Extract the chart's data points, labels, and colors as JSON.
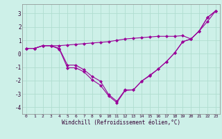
{
  "xlabel": "Windchill (Refroidissement éolien,°C)",
  "background_color": "#cdf0e8",
  "line_color": "#990099",
  "xlim": [
    -0.5,
    23.5
  ],
  "ylim": [
    -4.5,
    3.7
  ],
  "yticks": [
    -4,
    -3,
    -2,
    -1,
    0,
    1,
    2,
    3
  ],
  "xticks": [
    0,
    1,
    2,
    3,
    4,
    5,
    6,
    7,
    8,
    9,
    10,
    11,
    12,
    13,
    14,
    15,
    16,
    17,
    18,
    19,
    20,
    21,
    22,
    23
  ],
  "grid_color": "#b0ddd0",
  "series1_x": [
    0,
    1,
    2,
    3,
    4,
    5,
    6,
    7,
    8,
    9,
    10,
    11,
    12,
    13,
    14,
    15,
    16,
    17,
    18,
    19,
    20,
    21,
    22,
    23
  ],
  "series1_y": [
    0.4,
    0.4,
    0.6,
    0.6,
    0.4,
    -0.85,
    -0.85,
    -1.2,
    -1.7,
    -2.05,
    -3.05,
    -3.55,
    -2.7,
    -2.7,
    -2.05,
    -1.6,
    -1.15,
    -0.6,
    0.05,
    0.9,
    1.1,
    1.7,
    2.7,
    3.2
  ],
  "series2_x": [
    0,
    1,
    2,
    3,
    4,
    5,
    6,
    7,
    8,
    9,
    10,
    11,
    12,
    13,
    14,
    15,
    16,
    17,
    18,
    19,
    20,
    21,
    22,
    23
  ],
  "series2_y": [
    0.4,
    0.4,
    0.6,
    0.6,
    0.35,
    -1.05,
    -1.05,
    -1.35,
    -1.95,
    -2.35,
    -3.15,
    -3.65,
    -2.75,
    -2.7,
    -2.05,
    -1.65,
    -1.15,
    -0.6,
    0.05,
    0.9,
    1.1,
    1.7,
    2.7,
    3.2
  ],
  "series3_x": [
    0,
    1,
    2,
    3,
    4,
    5,
    6,
    7,
    8,
    9,
    10,
    11,
    12,
    13,
    14,
    15,
    16,
    17,
    18,
    19,
    20,
    21,
    22,
    23
  ],
  "series3_y": [
    0.4,
    0.4,
    0.6,
    0.6,
    0.6,
    0.65,
    0.7,
    0.75,
    0.8,
    0.85,
    0.9,
    1.0,
    1.1,
    1.15,
    1.2,
    1.25,
    1.3,
    1.3,
    1.3,
    1.35,
    1.1,
    1.7,
    2.4,
    3.2
  ]
}
